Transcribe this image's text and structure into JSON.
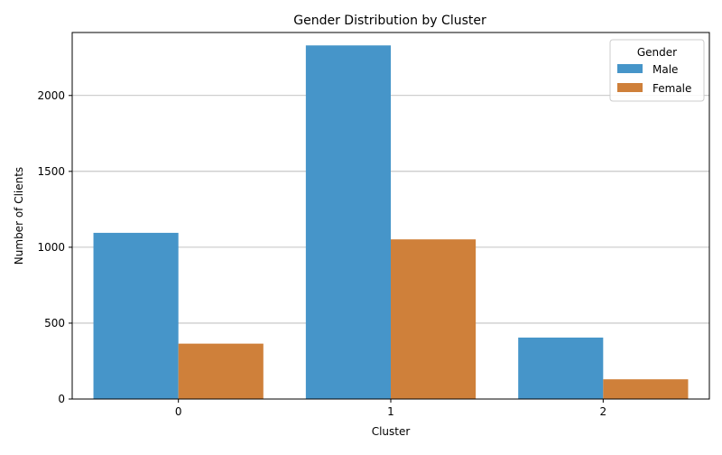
{
  "chart_data": {
    "type": "bar",
    "title": "Gender Distribution by Cluster",
    "xlabel": "Cluster",
    "ylabel": "Number of Clients",
    "categories": [
      "0",
      "1",
      "2"
    ],
    "series": [
      {
        "name": "Male",
        "values": [
          1095,
          2330,
          405
        ],
        "color": "#4695c9"
      },
      {
        "name": "Female",
        "values": [
          365,
          1052,
          130
        ],
        "color": "#cf803a"
      }
    ],
    "ylim": [
      0,
      2415
    ],
    "yticks": [
      0,
      500,
      1000,
      1500,
      2000
    ],
    "ytick_labels": [
      "0",
      "500",
      "1000",
      "1500",
      "2000"
    ],
    "grid": "horizontal",
    "legend": {
      "title": "Gender",
      "placement": "top-right"
    }
  }
}
